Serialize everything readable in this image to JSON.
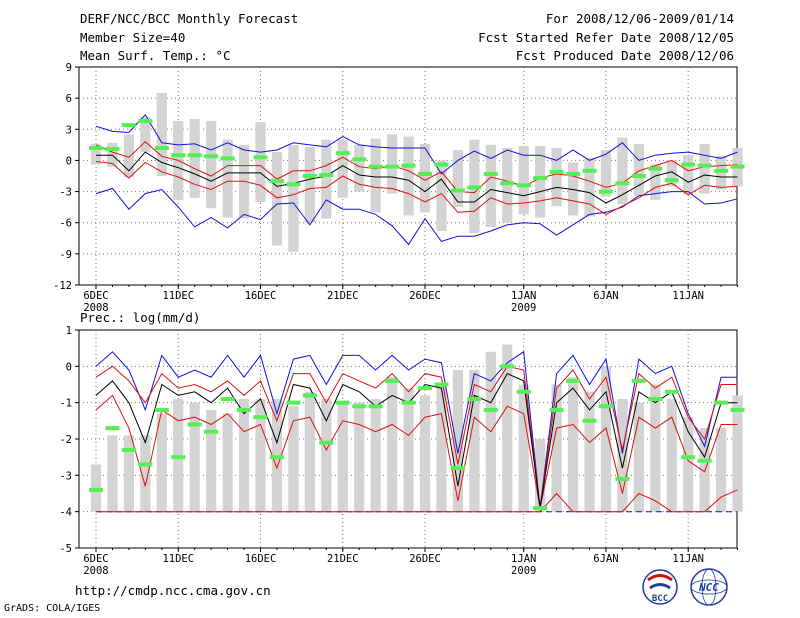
{
  "header": {
    "title": "DERF/NCC/BCC Monthly Forecast",
    "member_size": "Member Size=40",
    "variable": "Mean Surf. Temp.: °C",
    "period": "For 2008/12/06-2009/01/14",
    "started": "Fcst Started Refer Date 2008/12/05",
    "produced": "Fcst Produced Date 2008/12/06"
  },
  "footer": {
    "url": "http://cmdp.ncc.cma.gov.cn",
    "grads": "GrADS: COLA/IGES",
    "logo_bcc": "BCC",
    "logo_ncc": "NCC"
  },
  "colors": {
    "box": "#d3d3d3",
    "median": "#54f054",
    "mean": "#000000",
    "std": "#e01010",
    "range": "#1010e0",
    "grid": "#777777"
  },
  "chart_data": [
    {
      "type": "line",
      "title": "Mean Surf. Temp.: °C",
      "ylabel": "°C",
      "ylim": [
        -12,
        9
      ],
      "yticks": [
        -12,
        -9,
        -6,
        -3,
        0,
        3,
        6,
        9
      ],
      "xlim": [
        0,
        39
      ],
      "xticks": [
        {
          "x": 0,
          "label": "6DEC",
          "sub": "2008"
        },
        {
          "x": 5,
          "label": "11DEC"
        },
        {
          "x": 10,
          "label": "16DEC"
        },
        {
          "x": 15,
          "label": "21DEC"
        },
        {
          "x": 20,
          "label": "26DEC"
        },
        {
          "x": 26,
          "label": "1JAN",
          "sub": "2009"
        },
        {
          "x": 31,
          "label": "6JAN"
        },
        {
          "x": 36,
          "label": "11JAN"
        }
      ],
      "grid": true,
      "series": [
        {
          "name": "box_top",
          "values": [
            1.6,
            1.7,
            2.5,
            4.2,
            6.5,
            3.8,
            4.0,
            3.8,
            2.0,
            1.5,
            3.7,
            0.8,
            1.5,
            1.3,
            2.0,
            2.0,
            1.5,
            2.1,
            2.5,
            2.3,
            1.6,
            0.0,
            1.0,
            2.0,
            1.5,
            1.2,
            1.4,
            1.4,
            1.2,
            -0.2,
            0.2,
            1.0,
            2.2,
            1.6,
            -0.4,
            0.0,
            0.5,
            1.6,
            0.4,
            1.2
          ]
        },
        {
          "name": "box_bottom",
          "values": [
            -0.4,
            -0.6,
            -1.6,
            0.8,
            -1.5,
            -3.8,
            -3.6,
            -4.6,
            -5.5,
            -5.6,
            -4.0,
            -8.2,
            -8.8,
            -6.0,
            -5.6,
            -3.6,
            -3.0,
            -5.0,
            -3.2,
            -5.3,
            -5.0,
            -6.8,
            -4.5,
            -7.0,
            -6.4,
            -6.0,
            -5.2,
            -5.5,
            -4.4,
            -5.3,
            -5.4,
            -3.5,
            -4.2,
            -3.4,
            -3.8,
            -2.5,
            -3.3,
            -3.2,
            -2.8,
            -2.5
          ]
        },
        {
          "name": "median",
          "values": [
            1.2,
            1.1,
            3.4,
            3.8,
            1.2,
            0.5,
            0.5,
            0.4,
            0.2,
            null,
            0.3,
            -2.0,
            -2.3,
            -1.5,
            -1.4,
            0.7,
            0.1,
            -0.6,
            -0.6,
            -0.5,
            -1.3,
            -0.4,
            -2.9,
            -2.6,
            -1.3,
            -2.2,
            -2.4,
            -1.7,
            -1.1,
            -1.3,
            -1.0,
            -3.0,
            -2.2,
            -1.5,
            -0.8,
            -1.9,
            -0.4,
            -0.5,
            -1.0,
            -0.6
          ]
        },
        {
          "name": "mean",
          "values": [
            0.5,
            0.5,
            -1.0,
            0.8,
            -0.2,
            -0.7,
            -1.3,
            -2.0,
            -1.2,
            -1.2,
            -1.2,
            -2.5,
            -2.2,
            -1.8,
            -1.5,
            -0.5,
            -1.4,
            -1.6,
            -1.6,
            -1.9,
            -3.0,
            -1.8,
            -4.0,
            -4.0,
            -2.8,
            -3.1,
            -3.4,
            -3.0,
            -2.6,
            -2.8,
            -3.1,
            -4.1,
            -3.3,
            -2.4,
            -1.5,
            -1.1,
            -2.1,
            -1.4,
            -1.6,
            -1.6
          ]
        },
        {
          "name": "std_upper",
          "values": [
            1.5,
            0.8,
            0.3,
            1.8,
            0.4,
            0.0,
            -0.8,
            -1.5,
            -0.5,
            -0.5,
            -0.5,
            -1.8,
            -1.0,
            -1.0,
            -0.5,
            0.3,
            -0.6,
            -0.8,
            -0.5,
            -1.0,
            -1.9,
            -1.1,
            -3.0,
            -3.1,
            -1.6,
            -2.0,
            -2.5,
            -1.7,
            -1.3,
            -1.5,
            -2.0,
            -2.6,
            -2.2,
            -1.0,
            -0.5,
            0.0,
            -1.0,
            -0.6,
            -0.5,
            -0.4
          ]
        },
        {
          "name": "std_lower",
          "values": [
            -0.1,
            -0.3,
            -1.7,
            -0.2,
            -1.1,
            -1.6,
            -2.3,
            -2.8,
            -2.0,
            -2.0,
            -2.4,
            -3.6,
            -3.3,
            -2.7,
            -2.6,
            -1.5,
            -2.3,
            -2.6,
            -2.7,
            -3.2,
            -4.0,
            -3.2,
            -5.0,
            -4.9,
            -3.6,
            -4.2,
            -4.1,
            -3.9,
            -3.6,
            -3.9,
            -4.2,
            -5.2,
            -4.4,
            -3.6,
            -2.6,
            -2.2,
            -3.3,
            -2.4,
            -2.6,
            -2.5
          ]
        },
        {
          "name": "max",
          "values": [
            3.3,
            2.8,
            2.7,
            4.4,
            1.7,
            1.5,
            1.6,
            1.0,
            1.7,
            1.0,
            0.8,
            1.0,
            1.7,
            1.5,
            1.3,
            2.3,
            1.5,
            1.3,
            1.2,
            1.2,
            1.2,
            -1.3,
            0.0,
            0.9,
            0.2,
            1.0,
            0.5,
            0.5,
            0.0,
            1.0,
            0.0,
            0.6,
            1.7,
            0.0,
            0.5,
            0.7,
            0.8,
            0.5,
            0.2,
            0.8
          ]
        },
        {
          "name": "min",
          "values": [
            -3.2,
            -2.7,
            -4.7,
            -3.2,
            -2.8,
            -4.5,
            -6.4,
            -5.5,
            -6.5,
            -5.2,
            -5.7,
            -4.2,
            -4.1,
            -6.2,
            -3.8,
            -4.7,
            -4.7,
            -5.2,
            -6.3,
            -8.1,
            -5.6,
            -7.8,
            -7.3,
            -7.3,
            -6.8,
            -6.2,
            -6.0,
            -6.1,
            -7.2,
            -6.2,
            -5.2,
            -5.0,
            -4.5,
            -3.4,
            -3.2,
            -3.0,
            -3.0,
            -4.2,
            -4.1,
            -3.7
          ]
        }
      ]
    },
    {
      "type": "line",
      "title": "Prec.: log(mm/d)",
      "ylabel": "log(mm/d)",
      "ylim": [
        -5,
        1
      ],
      "yticks": [
        -5,
        -4,
        -3,
        -2,
        -1,
        0,
        1
      ],
      "xlim": [
        0,
        39
      ],
      "xticks": [
        {
          "x": 0,
          "label": "6DEC",
          "sub": "2008"
        },
        {
          "x": 5,
          "label": "11DEC"
        },
        {
          "x": 10,
          "label": "16DEC"
        },
        {
          "x": 15,
          "label": "21DEC"
        },
        {
          "x": 20,
          "label": "26DEC"
        },
        {
          "x": 26,
          "label": "1JAN",
          "sub": "2009"
        },
        {
          "x": 31,
          "label": "6JAN"
        },
        {
          "x": 36,
          "label": "11JAN"
        }
      ],
      "grid": true,
      "series": [
        {
          "name": "box_top",
          "values": [
            -2.7,
            -1.9,
            -1.9,
            -1.9,
            -1.3,
            -0.9,
            -1.0,
            -1.2,
            -1.3,
            -0.9,
            -0.9,
            -0.9,
            -1.1,
            -0.7,
            -0.9,
            -1.0,
            -1.0,
            -0.9,
            -0.3,
            -0.6,
            -0.8,
            -0.5,
            -0.1,
            -0.1,
            0.4,
            0.6,
            -0.5,
            -2.0,
            -0.5,
            -0.3,
            -0.7,
            0.0,
            -0.9,
            -1.0,
            -0.5,
            -0.9,
            -1.4,
            -1.7,
            -1.7,
            -0.8
          ]
        },
        {
          "name": "box_bottom",
          "values": [
            -4.0,
            -4.0,
            -4.0,
            -4.0,
            -4.0,
            -4.0,
            -4.0,
            -4.0,
            -4.0,
            -4.0,
            -4.0,
            -4.0,
            -4.0,
            -4.0,
            -4.0,
            -4.0,
            -4.0,
            -4.0,
            -4.0,
            -4.0,
            -4.0,
            -4.0,
            -4.0,
            -4.0,
            -4.0,
            -4.0,
            -4.0,
            -4.0,
            -4.0,
            -4.0,
            -4.0,
            -4.0,
            -4.0,
            -4.0,
            -4.0,
            -4.0,
            -4.0,
            -4.0,
            -4.0,
            -4.0
          ]
        },
        {
          "name": "median",
          "values": [
            -3.4,
            -1.7,
            -2.3,
            -2.7,
            -1.2,
            -2.5,
            -1.6,
            -1.8,
            -0.9,
            -1.2,
            -1.4,
            -2.5,
            -1.0,
            -0.8,
            -2.1,
            -1.0,
            -1.1,
            -1.1,
            -0.4,
            -1.0,
            -0.6,
            -0.5,
            -2.8,
            -0.9,
            -1.2,
            -0.0,
            -0.7,
            -3.9,
            -1.2,
            -0.4,
            -1.5,
            -1.1,
            -3.1,
            -0.4,
            -0.9,
            -0.7,
            -2.5,
            -2.6,
            -1.0,
            -1.2
          ]
        },
        {
          "name": "mean",
          "values": [
            -0.8,
            -0.4,
            -1.0,
            -2.1,
            -0.5,
            -0.8,
            -0.7,
            -1.0,
            -0.6,
            -1.3,
            -0.9,
            -2.1,
            -0.5,
            -0.6,
            -1.5,
            -0.5,
            -0.7,
            -1.1,
            -0.8,
            -1.0,
            -0.5,
            -0.6,
            -3.3,
            -0.8,
            -1.0,
            -0.2,
            -0.4,
            -3.9,
            -1.0,
            -0.6,
            -1.2,
            -0.7,
            -2.8,
            -0.7,
            -1.0,
            -0.7,
            -1.8,
            -2.5,
            -1.0,
            -1.0
          ]
        },
        {
          "name": "std_upper",
          "values": [
            -0.3,
            0.0,
            -0.4,
            -1.0,
            -0.2,
            -0.6,
            -0.5,
            -0.7,
            -0.4,
            -0.8,
            -0.4,
            -1.5,
            -0.2,
            -0.2,
            -1.0,
            -0.2,
            -0.4,
            -0.6,
            -0.2,
            -0.7,
            -0.2,
            -0.3,
            -2.7,
            -0.5,
            -0.7,
            0.0,
            -0.1,
            -3.9,
            -0.6,
            -0.1,
            -0.9,
            -0.3,
            -2.3,
            -0.2,
            -0.6,
            -0.3,
            -1.4,
            -2.0,
            -0.5,
            -0.5
          ]
        },
        {
          "name": "std_lower",
          "values": [
            -1.2,
            -0.8,
            -1.7,
            -3.3,
            -1.2,
            -1.5,
            -1.4,
            -1.6,
            -1.3,
            -1.8,
            -1.6,
            -2.8,
            -1.5,
            -1.4,
            -2.3,
            -1.5,
            -1.6,
            -1.8,
            -1.6,
            -1.9,
            -1.4,
            -1.3,
            -3.7,
            -1.4,
            -1.8,
            -1.1,
            -1.3,
            -3.9,
            -1.7,
            -1.6,
            -2.1,
            -1.7,
            -3.5,
            -1.4,
            -1.7,
            -1.4,
            -2.6,
            -2.9,
            -1.6,
            -1.6
          ]
        },
        {
          "name": "max",
          "values": [
            0.0,
            0.4,
            -0.1,
            -1.2,
            0.3,
            -0.3,
            -0.1,
            -0.3,
            0.3,
            -0.3,
            0.3,
            -1.3,
            0.2,
            0.3,
            -0.5,
            0.3,
            0.3,
            -0.1,
            0.3,
            -0.1,
            0.2,
            0.1,
            -2.4,
            -0.2,
            -0.4,
            0.1,
            0.4,
            -3.9,
            -0.2,
            0.3,
            -0.5,
            0.2,
            -2.4,
            0.2,
            -0.2,
            0.0,
            -1.3,
            -2.2,
            -0.3,
            -0.3
          ]
        },
        {
          "name": "min",
          "values": [
            -4.0,
            -4.0,
            -4.0,
            -4.0,
            -4.0,
            -4.0,
            -4.0,
            -4.0,
            -4.0,
            -4.0,
            -4.0,
            -4.0,
            -4.0,
            -4.0,
            -4.0,
            -4.0,
            -4.0,
            -4.0,
            -4.0,
            -4.0,
            -4.0,
            -4.0,
            -4.0,
            -4.0,
            -4.0,
            -4.0,
            -4.0,
            -4.0,
            -4.0,
            -4.0,
            -4.0,
            -4.0,
            -4.0,
            -4.0,
            -4.0,
            -4.0,
            -4.0,
            -4.0,
            -4.0,
            -4.0
          ]
        },
        {
          "name": "min_std",
          "values": [
            -4.0,
            -4.0,
            -4.0,
            -4.0,
            -4.0,
            -4.0,
            -4.0,
            -4.0,
            -4.0,
            -4.0,
            -4.0,
            -4.0,
            -4.0,
            -4.0,
            -4.0,
            -4.0,
            -4.0,
            -4.0,
            -4.0,
            -4.0,
            -4.0,
            -4.0,
            -4.0,
            -4.0,
            -4.0,
            -4.0,
            -4.0,
            -4.0,
            -3.5,
            -4.0,
            -4.0,
            -4.0,
            -4.0,
            -3.5,
            -3.7,
            -4.0,
            -4.0,
            -4.0,
            -3.6,
            -3.4
          ]
        }
      ]
    }
  ]
}
